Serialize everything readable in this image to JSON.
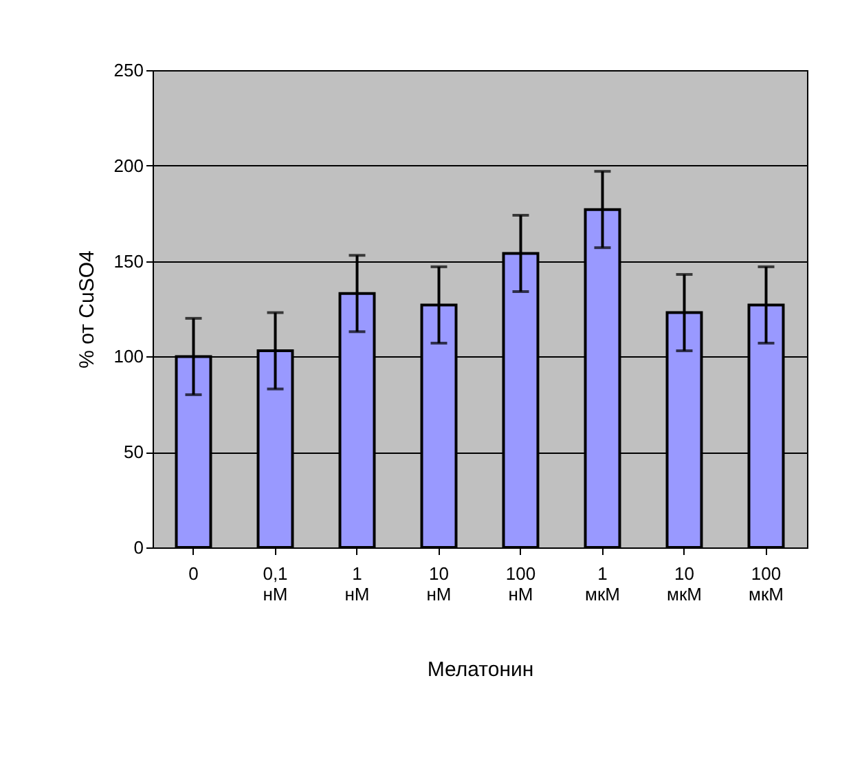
{
  "chart_data": {
    "type": "bar",
    "xlabel": "Мелатонин",
    "ylabel": "% от CuSO4",
    "categories": [
      "0",
      "0,1 нМ",
      "1 нМ",
      "10 нМ",
      "100 нМ",
      "1 мкМ",
      "10 мкМ",
      "100 мкМ"
    ],
    "values": [
      100,
      103,
      133,
      127,
      154,
      177,
      123,
      127
    ],
    "errors": [
      20,
      20,
      20,
      20,
      20,
      20,
      20,
      20
    ],
    "color": "#9999ff",
    "ylim": [
      0,
      250
    ],
    "yticks": [
      0,
      50,
      100,
      150,
      200,
      250
    ],
    "grid": "y"
  }
}
